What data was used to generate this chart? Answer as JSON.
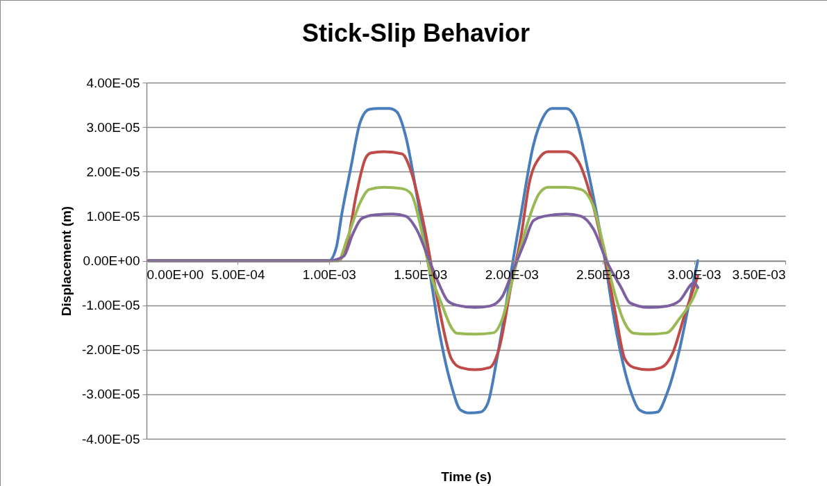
{
  "chart_data": {
    "type": "line",
    "title": "Stick-Slip Behavior",
    "xlabel": "Time (s)",
    "ylabel": "Displacement (m)",
    "xlim": [
      0,
      0.0035
    ],
    "ylim": [
      -4e-05,
      4e-05
    ],
    "xticks": [
      {
        "value": 0,
        "label": "0.00E+00"
      },
      {
        "value": 0.0005,
        "label": "5.00E-04"
      },
      {
        "value": 0.001,
        "label": "1.00E-03"
      },
      {
        "value": 0.0015,
        "label": "1.50E-03"
      },
      {
        "value": 0.002,
        "label": "2.00E-03"
      },
      {
        "value": 0.0025,
        "label": "2.50E-03"
      },
      {
        "value": 0.003,
        "label": "3.00E-03"
      },
      {
        "value": 0.0035,
        "label": "3.50E-03"
      }
    ],
    "yticks": [
      {
        "value": -4e-05,
        "label": "-4.00E-05"
      },
      {
        "value": -3e-05,
        "label": "-3.00E-05"
      },
      {
        "value": -2e-05,
        "label": "-2.00E-05"
      },
      {
        "value": -1e-05,
        "label": "-1.00E-05"
      },
      {
        "value": 0,
        "label": "0.00E+00"
      },
      {
        "value": 1e-05,
        "label": "1.00E-05"
      },
      {
        "value": 2e-05,
        "label": "2.00E-05"
      },
      {
        "value": 3e-05,
        "label": "3.00E-05"
      },
      {
        "value": 4e-05,
        "label": "4.00E-05"
      }
    ],
    "grid": "y",
    "marker": "none",
    "line_style": "solid",
    "series": [
      {
        "color": "#4a7ebb",
        "x": [
          1e-05,
          0.001,
          0.00104,
          0.00107,
          0.00112,
          0.00117,
          0.00122,
          0.00127,
          0.00133,
          0.00137,
          0.00142,
          0.00148,
          0.00155,
          0.0016,
          0.00167,
          0.00172,
          0.00177,
          0.00183,
          0.00187,
          0.00192,
          0.00197,
          0.002,
          0.00205,
          0.00212,
          0.00217,
          0.00222,
          0.0023,
          0.00235,
          0.00242,
          0.0025,
          0.00257,
          0.00265,
          0.0027,
          0.00275,
          0.0028,
          0.00285,
          0.00292,
          0.00298,
          0.00302
        ],
        "values": [
          0,
          0,
          3e-06,
          1.05e-05,
          2.1e-05,
          3.1e-05,
          3.4e-05,
          3.42e-05,
          3.42e-05,
          3.35e-05,
          2.8e-05,
          1.5e-05,
          -2e-06,
          -1.5e-05,
          -2.8e-05,
          -3.35e-05,
          -3.42e-05,
          -3.4e-05,
          -3.2e-05,
          -2.2e-05,
          -1e-05,
          -2e-06,
          1e-05,
          2.6e-05,
          3.2e-05,
          3.42e-05,
          3.42e-05,
          3.2e-05,
          2e-05,
          3e-06,
          -1.5e-05,
          -2.9e-05,
          -3.35e-05,
          -3.42e-05,
          -3.4e-05,
          -3e-05,
          -2e-05,
          -8e-06,
          0
        ]
      },
      {
        "color": "#be4b48",
        "x": [
          1e-05,
          0.001,
          0.00105,
          0.0011,
          0.00115,
          0.0012,
          0.00123,
          0.0013,
          0.0014,
          0.00145,
          0.00152,
          0.0016,
          0.00167,
          0.00172,
          0.0018,
          0.00188,
          0.00193,
          0.002,
          0.00205,
          0.0021,
          0.00215,
          0.0022,
          0.0023,
          0.00237,
          0.00243,
          0.0025,
          0.00257,
          0.00262,
          0.00267,
          0.00275,
          0.00282,
          0.00288,
          0.00295,
          0.00302
        ],
        "values": [
          0,
          0,
          0,
          4e-06,
          1.5e-05,
          2.3e-05,
          2.42e-05,
          2.45e-05,
          2.4e-05,
          2e-05,
          8e-06,
          -1e-05,
          -2.2e-05,
          -2.4e-05,
          -2.45e-05,
          -2.4e-05,
          -2e-05,
          -5e-06,
          5e-06,
          1.8e-05,
          2.3e-05,
          2.45e-05,
          2.45e-05,
          2.2e-05,
          1.5e-05,
          3e-06,
          -1.2e-05,
          -2.2e-05,
          -2.4e-05,
          -2.45e-05,
          -2.4e-05,
          -2.1e-05,
          -1.2e-05,
          -3.5e-06
        ]
      },
      {
        "color": "#98b954",
        "x": [
          1e-05,
          0.001,
          0.00105,
          0.0011,
          0.00117,
          0.00122,
          0.0013,
          0.0014,
          0.00145,
          0.0015,
          0.00155,
          0.00162,
          0.00167,
          0.0017,
          0.0018,
          0.0019,
          0.00195,
          0.002,
          0.00205,
          0.0021,
          0.00215,
          0.0022,
          0.0023,
          0.00238,
          0.00245,
          0.0025,
          0.00255,
          0.00262,
          0.00267,
          0.00275,
          0.00285,
          0.00292,
          0.003,
          0.00302
        ],
        "values": [
          0,
          0,
          0,
          5e-06,
          1.3e-05,
          1.6e-05,
          1.65e-05,
          1.62e-05,
          1.5e-05,
          8e-06,
          -2e-06,
          -1e-05,
          -1.5e-05,
          -1.63e-05,
          -1.65e-05,
          -1.62e-05,
          -1.3e-05,
          -5e-06,
          3e-06,
          1e-05,
          1.5e-05,
          1.65e-05,
          1.65e-05,
          1.6e-05,
          1.2e-05,
          4e-06,
          -5e-06,
          -1.4e-05,
          -1.63e-05,
          -1.65e-05,
          -1.62e-05,
          -1.3e-05,
          -8e-06,
          -6e-06
        ]
      },
      {
        "color": "#7d60a0",
        "x": [
          1e-05,
          0.001,
          0.00108,
          0.00113,
          0.00118,
          0.00125,
          0.00135,
          0.00142,
          0.00148,
          0.00155,
          0.0016,
          0.00165,
          0.0017,
          0.0018,
          0.00188,
          0.00195,
          0.002,
          0.00207,
          0.00212,
          0.00218,
          0.0023,
          0.00238,
          0.00245,
          0.00252,
          0.0026,
          0.00265,
          0.00275,
          0.00285,
          0.00292,
          0.003,
          0.00302
        ],
        "values": [
          0,
          0,
          1e-06,
          6e-06,
          9.5e-06,
          1.03e-05,
          1.05e-05,
          1e-05,
          7e-06,
          0,
          -5e-06,
          -9e-06,
          -1e-05,
          -1.05e-05,
          -1.02e-05,
          -8e-06,
          -3e-06,
          4e-06,
          9e-06,
          1e-05,
          1.05e-05,
          1e-05,
          7e-06,
          0,
          -6e-06,
          -9.5e-06,
          -1.05e-05,
          -1.02e-05,
          -9e-06,
          -5e-06,
          -6e-06
        ]
      }
    ]
  }
}
